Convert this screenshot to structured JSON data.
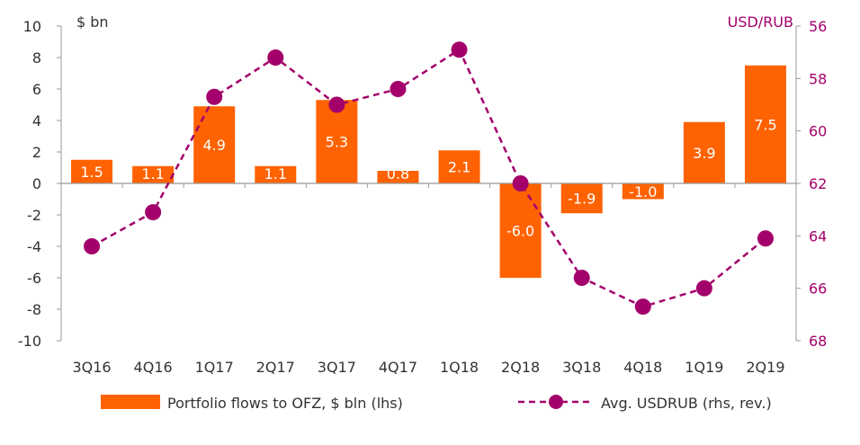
{
  "chart_data": {
    "type": "bar+line",
    "categories": [
      "3Q16",
      "4Q16",
      "1Q17",
      "2Q17",
      "3Q17",
      "4Q17",
      "1Q18",
      "2Q18",
      "3Q18",
      "4Q18",
      "1Q19",
      "2Q19"
    ],
    "left_axis": {
      "label": "$ bn",
      "ylim": [
        -10,
        10
      ],
      "ticks": [
        10,
        8,
        6,
        4,
        2,
        0,
        -2,
        -4,
        -6,
        -8,
        -10
      ]
    },
    "right_axis": {
      "label": "USD/RUB",
      "ylim": [
        56,
        68
      ],
      "reversed": true,
      "ticks": [
        56,
        58,
        60,
        62,
        64,
        66,
        68
      ]
    },
    "series": [
      {
        "name": "Portfolio flows to OFZ, $ bln (lhs)",
        "type": "bar",
        "axis": "left",
        "color": "#FF6200",
        "values": [
          1.5,
          1.1,
          4.9,
          1.1,
          5.3,
          0.8,
          2.1,
          -6.0,
          -1.9,
          -1.0,
          3.9,
          7.5
        ],
        "labels": [
          "1.5",
          "1.1",
          "4.9",
          "1.1",
          "5.3",
          "0.8",
          "2.1",
          "-6.0",
          "-1.9",
          "-1.0",
          "3.9",
          "7.5"
        ]
      },
      {
        "name": "Avg. USDRUB (rhs, rev.)",
        "type": "line",
        "axis": "right",
        "color": "#A3006B",
        "dashed": true,
        "values": [
          64.4,
          63.1,
          58.7,
          57.2,
          59.0,
          58.4,
          56.9,
          62.0,
          65.6,
          66.7,
          66.0,
          64.1
        ]
      }
    ],
    "grid": false,
    "legend": "bottom"
  }
}
